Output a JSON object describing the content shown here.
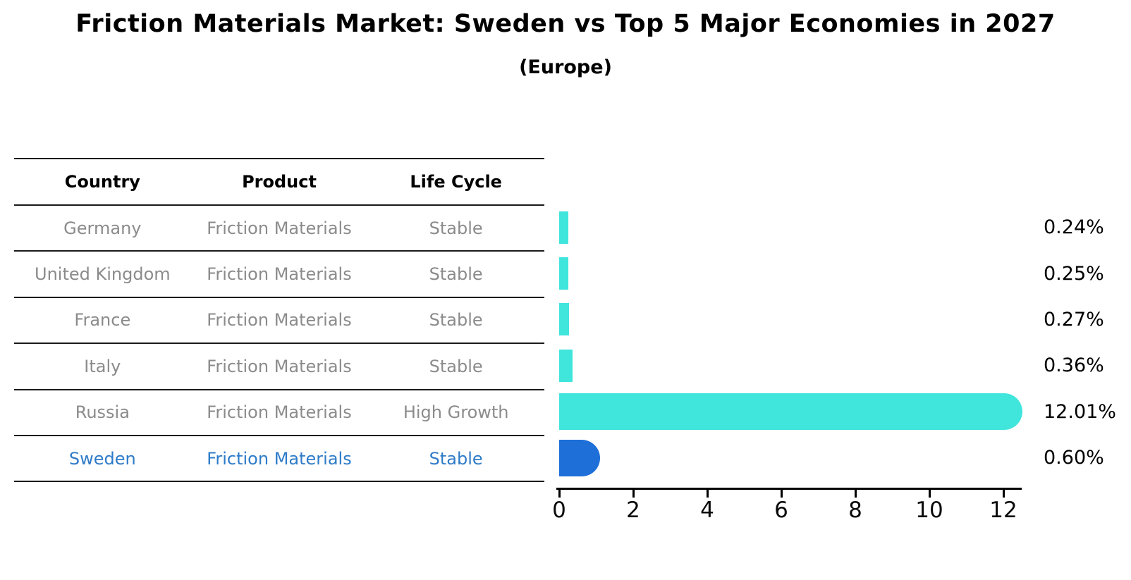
{
  "title": "Friction Materials Market: Sweden vs Top 5 Major Economies in 2027",
  "subtitle": "(Europe)",
  "table": {
    "headers": [
      "Country",
      "Product",
      "Life Cycle"
    ],
    "rows": [
      {
        "country": "Germany",
        "product": "Friction Materials",
        "life_cycle": "Stable",
        "highlight": false
      },
      {
        "country": "United Kingdom",
        "product": "Friction Materials",
        "life_cycle": "Stable",
        "highlight": false
      },
      {
        "country": "France",
        "product": "Friction Materials",
        "life_cycle": "Stable",
        "highlight": false
      },
      {
        "country": "Italy",
        "product": "Friction Materials",
        "life_cycle": "Stable",
        "highlight": false
      },
      {
        "country": "Russia",
        "product": "Friction Materials",
        "life_cycle": "High Growth",
        "highlight": false
      },
      {
        "country": "Sweden",
        "product": "Friction Materials",
        "life_cycle": "Stable",
        "highlight": true
      }
    ]
  },
  "chart_data": {
    "type": "bar",
    "orientation": "horizontal",
    "title": "Friction Materials Market: Sweden vs Top 5 Major Economies in 2027",
    "subtitle": "(Europe)",
    "categories": [
      "Germany",
      "United Kingdom",
      "France",
      "Italy",
      "Russia",
      "Sweden"
    ],
    "values": [
      0.24,
      0.25,
      0.27,
      0.36,
      12.01,
      0.6
    ],
    "value_labels": [
      "0.24%",
      "0.25%",
      "0.27%",
      "0.36%",
      "12.01%",
      "0.60%"
    ],
    "xlabel": "",
    "ylabel": "",
    "xlim": [
      0,
      12.8
    ],
    "x_ticks": [
      0,
      2,
      4,
      6,
      8,
      10,
      12
    ],
    "grid": false,
    "legend": false,
    "rounded_bar_indices": [
      4,
      5
    ],
    "highlight_index": 5,
    "colors": {
      "bar": "#40E5DC",
      "highlight_bar": "#1E6FD8",
      "highlight_text": "#2E7BC8",
      "row_text": "#8B8B8B",
      "axis": "#000000"
    }
  }
}
